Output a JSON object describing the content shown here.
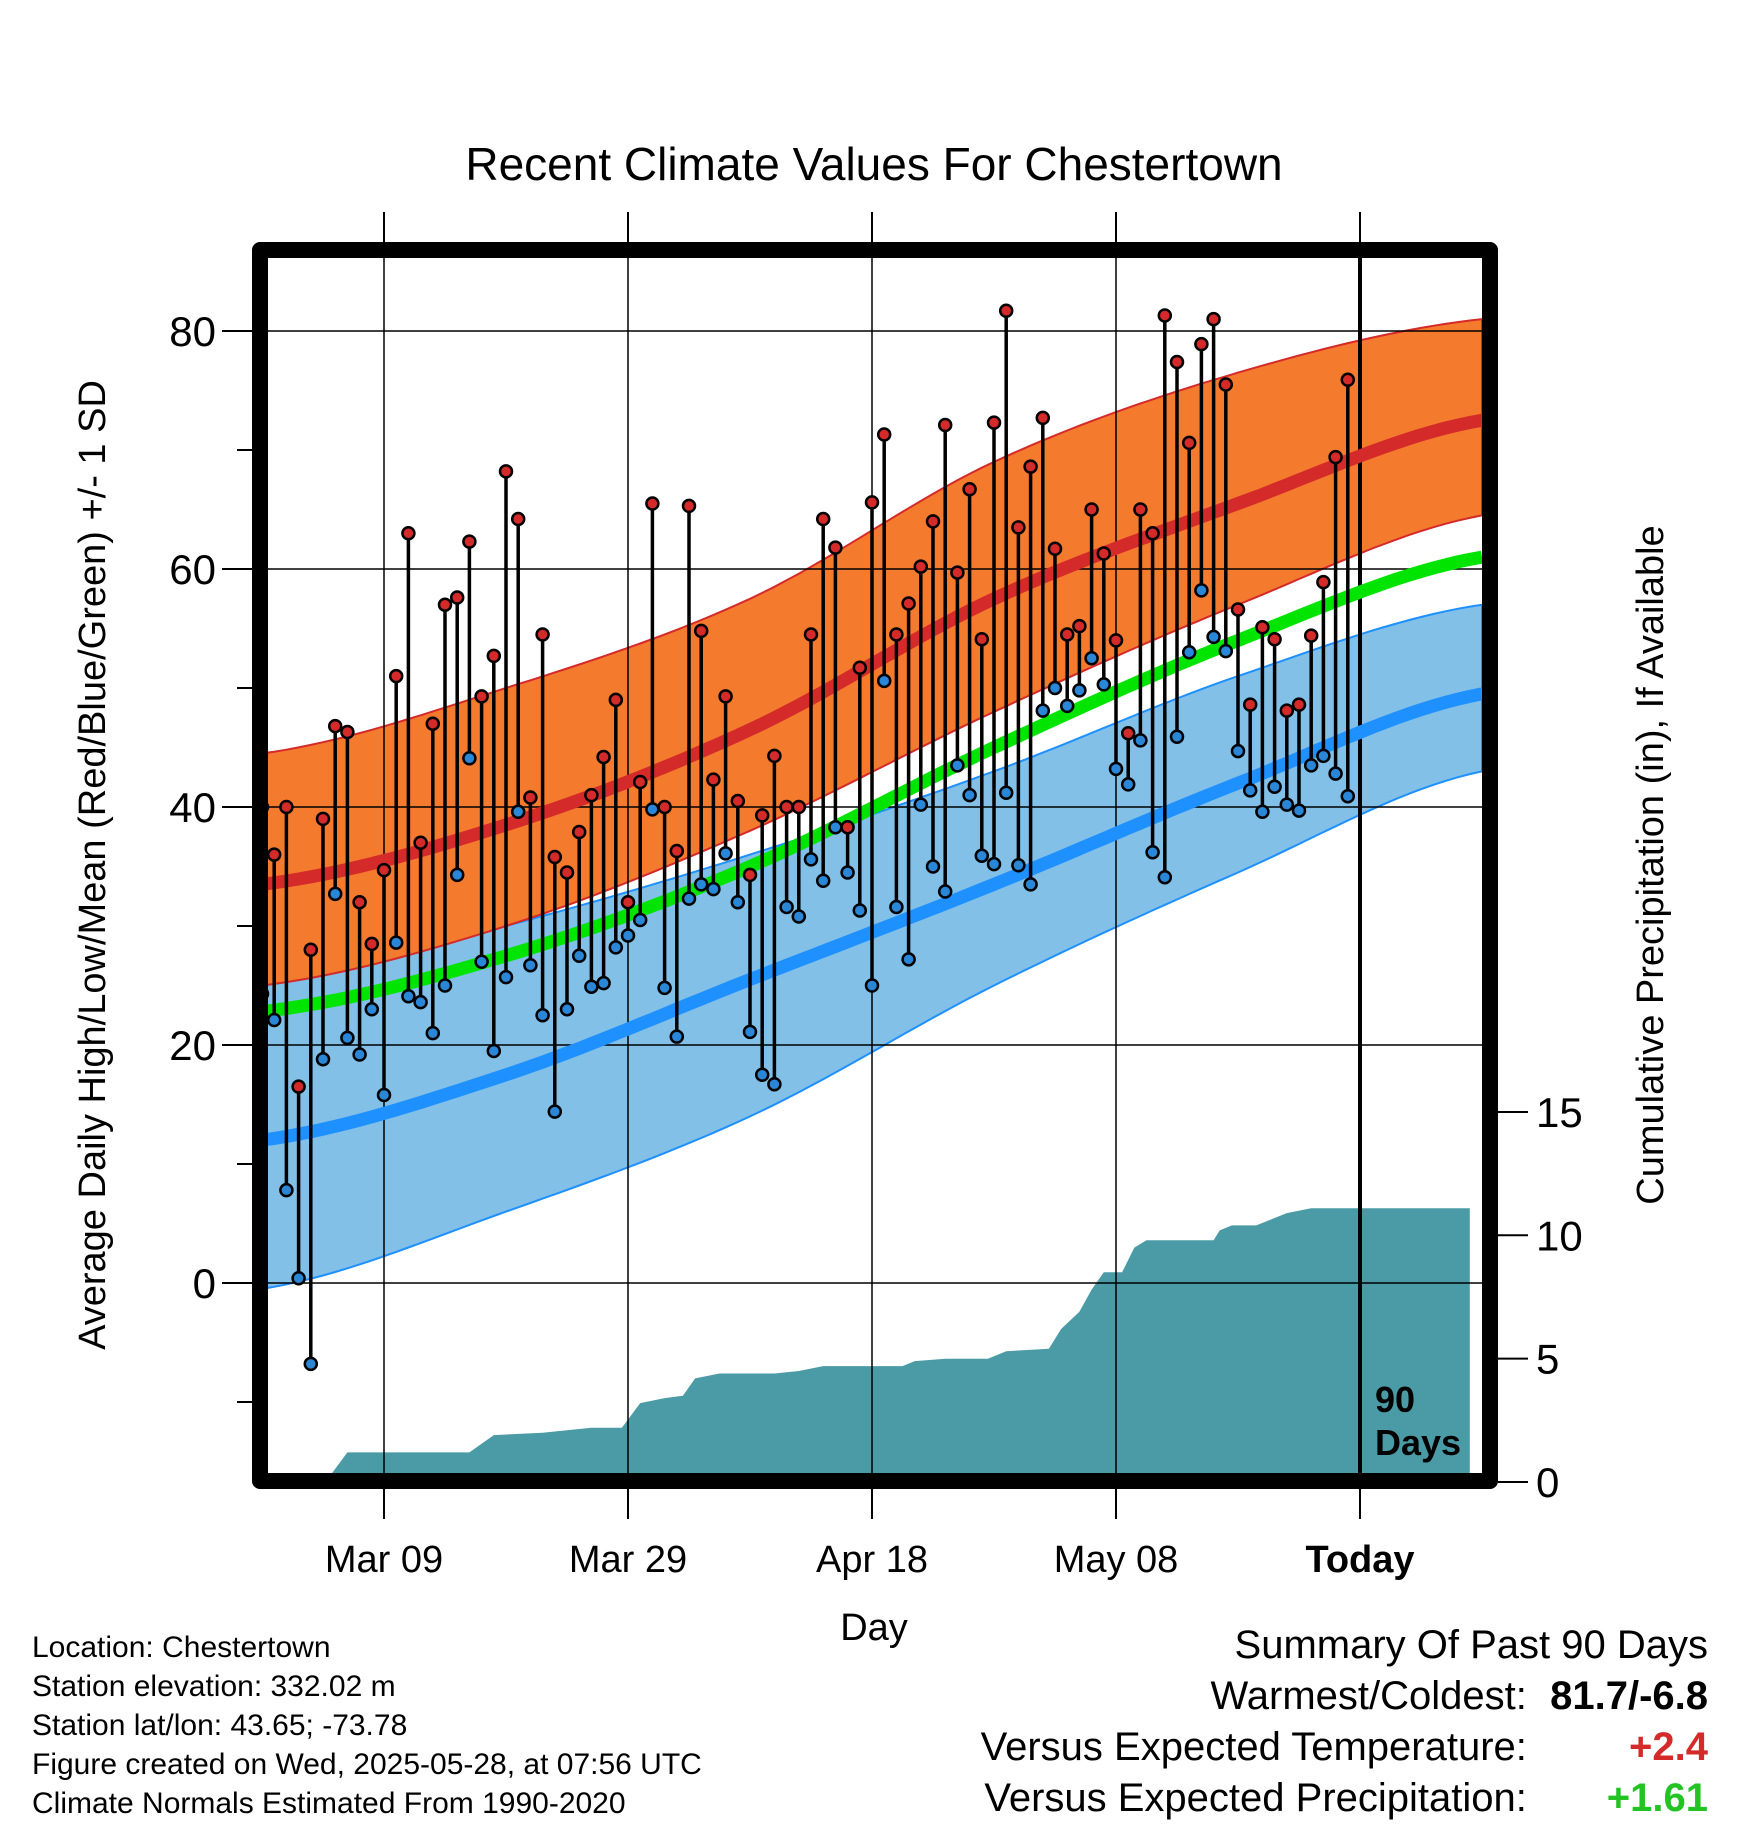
{
  "chart_data": {
    "type": "line",
    "title": "Recent Climate Values For Chestertown",
    "xlabel": "Day",
    "ylabel": "Average Daily High/Low/Mean (Red/Blue/Green) +/- 1 SD",
    "y2label": "Cumulative Precipitation (in), If Available",
    "x_range_days": [
      -80,
      10
    ],
    "ylim": [
      -16,
      87
    ],
    "y_ticks": [
      0,
      20,
      40,
      60,
      80
    ],
    "y2lim": [
      0,
      30
    ],
    "y2_ticks": [
      0,
      5,
      10,
      15
    ],
    "x_ticks": [
      {
        "day": -80,
        "label": "Mar 09"
      },
      {
        "day": -60,
        "label": "Mar 29"
      },
      {
        "day": -40,
        "label": "Apr 18"
      },
      {
        "day": -20,
        "label": "May 08"
      },
      {
        "day": 0,
        "label": "Today"
      }
    ],
    "today_marker": {
      "day": 0,
      "label_line1": "90",
      "label_line2": "Days"
    },
    "grid": true,
    "colors": {
      "high_band": "#f47a2e",
      "high_mean": "#d42a2a",
      "low_band": "#82c0e8",
      "low_mean": "#1e90ff",
      "mean_line": "#00e400",
      "precip": "#4a9ba6",
      "high_marker": "#d42a2a",
      "low_marker": "#2a86d6"
    },
    "normals": {
      "days": [
        -90,
        -70,
        -50,
        -30,
        -10,
        10
      ],
      "high_mean": [
        33.5,
        38.5,
        46.5,
        57.5,
        65.5,
        72.5
      ],
      "high_upper": [
        44.5,
        50.0,
        57.5,
        69.0,
        76.5,
        81.0
      ],
      "high_lower": [
        25.0,
        30.0,
        38.0,
        48.0,
        57.0,
        64.5
      ],
      "low_mean": [
        12.0,
        17.5,
        25.5,
        33.5,
        42.0,
        49.5
      ],
      "low_upper": [
        25.0,
        30.0,
        36.0,
        43.0,
        51.0,
        57.0
      ],
      "low_lower": [
        -0.5,
        6.0,
        14.0,
        25.0,
        34.5,
        43.0
      ],
      "mean_line": [
        22.8,
        27.5,
        35.0,
        45.0,
        54.0,
        61.0
      ]
    },
    "series": [
      {
        "name": "High",
        "values": [
          40,
          36,
          40,
          16.5,
          28,
          39,
          46.8,
          46.3,
          32,
          28.5,
          34.7,
          51,
          63,
          37,
          47,
          57,
          57.6,
          62.3,
          49.3,
          52.7,
          68.2,
          64.2,
          40.8,
          54.5,
          35.8,
          34.5,
          37.9,
          41,
          44.2,
          49,
          32,
          42.1,
          65.5,
          40,
          36.3,
          65.3,
          54.8,
          42.3,
          49.3,
          40.5,
          34.3,
          39.3,
          44.3,
          40,
          40,
          54.5,
          64.2,
          61.8,
          38.3,
          51.7,
          65.6,
          71.3,
          54.5,
          57.1,
          60.2,
          64,
          72.1,
          59.7,
          66.7,
          54.1,
          72.3,
          81.7,
          63.5,
          68.6,
          72.7,
          61.7,
          54.5,
          55.2,
          65,
          61.3,
          54,
          46.2,
          65,
          63,
          81.3,
          77.4,
          70.6,
          78.9,
          81,
          75.5,
          56.6,
          48.6,
          55.1,
          54.1,
          48.1,
          48.6,
          54.4,
          58.9,
          69.4,
          75.9
        ]
      },
      {
        "name": "Low",
        "values": [
          24.3,
          22.1,
          7.8,
          0.4,
          -6.8,
          18.8,
          32.7,
          20.6,
          19.2,
          23,
          15.8,
          28.6,
          24.1,
          23.6,
          21,
          25,
          34.3,
          44.1,
          27,
          19.5,
          25.7,
          39.6,
          26.7,
          22.5,
          14.4,
          23,
          27.5,
          24.9,
          25.2,
          28.2,
          29.2,
          30.5,
          39.8,
          24.8,
          20.7,
          32.3,
          33.5,
          33.1,
          36.1,
          32,
          21.1,
          17.5,
          16.7,
          31.6,
          30.8,
          35.6,
          33.8,
          38.3,
          34.5,
          31.3,
          25,
          50.6,
          31.6,
          27.2,
          40.2,
          35,
          32.9,
          43.5,
          41,
          35.9,
          35.2,
          41.2,
          35.1,
          33.5,
          48.1,
          50,
          48.5,
          49.8,
          52.5,
          50.3,
          43.2,
          41.9,
          45.6,
          36.2,
          34.1,
          45.9,
          53,
          58.2,
          54.3,
          53.1,
          44.7,
          41.4,
          39.6,
          41.7,
          40.2,
          39.7,
          43.5,
          44.3,
          42.8,
          40.9
        ]
      },
      {
        "name": "Cumulative Precipitation",
        "points": [
          [
            -90,
            0
          ],
          [
            -84.8,
            0
          ],
          [
            -83,
            1.2
          ],
          [
            -73,
            1.2
          ],
          [
            -71,
            1.9
          ],
          [
            -67,
            2
          ],
          [
            -65,
            2.1
          ],
          [
            -63,
            2.2
          ],
          [
            -60.5,
            2.2
          ],
          [
            -59,
            3.2
          ],
          [
            -57,
            3.4
          ],
          [
            -55.5,
            3.5
          ],
          [
            -54.5,
            4.2
          ],
          [
            -52.5,
            4.4
          ],
          [
            -48,
            4.4
          ],
          [
            -46,
            4.5
          ],
          [
            -44,
            4.7
          ],
          [
            -37.5,
            4.7
          ],
          [
            -36.5,
            4.9
          ],
          [
            -34,
            5
          ],
          [
            -30.5,
            5
          ],
          [
            -29,
            5.3
          ],
          [
            -25.5,
            5.4
          ],
          [
            -24.5,
            6.2
          ],
          [
            -23,
            6.9
          ],
          [
            -22,
            7.8
          ],
          [
            -21,
            8.5
          ],
          [
            -19.5,
            8.5
          ],
          [
            -18.5,
            9.5
          ],
          [
            -17.5,
            9.8
          ],
          [
            -12,
            9.8
          ],
          [
            -11.5,
            10.2
          ],
          [
            -10.5,
            10.4
          ],
          [
            -8.5,
            10.4
          ],
          [
            -7.5,
            10.6
          ],
          [
            -6,
            10.9
          ],
          [
            -4,
            11.1
          ],
          [
            0,
            11.1
          ],
          [
            9,
            11.1
          ]
        ]
      }
    ]
  },
  "footer": {
    "location": "Location: Chestertown",
    "elevation": "Station elevation: 332.02 m",
    "latlon": "Station lat/lon: 43.65; -73.78",
    "created": "Figure created on Wed, 2025-05-28, at 07:56 UTC",
    "normals": "Climate Normals Estimated From 1990-2020"
  },
  "summary": {
    "title": "Summary Of Past 90 Days",
    "warmest_label": "Warmest/Coldest:",
    "warmest_value": "81.7/-6.8",
    "temp_label": "Versus Expected Temperature:",
    "temp_value": "+2.4",
    "temp_color": "#d42a2a",
    "precip_label": "Versus Expected Precipitation:",
    "precip_value": "+1.61",
    "precip_color": "#22c322"
  }
}
